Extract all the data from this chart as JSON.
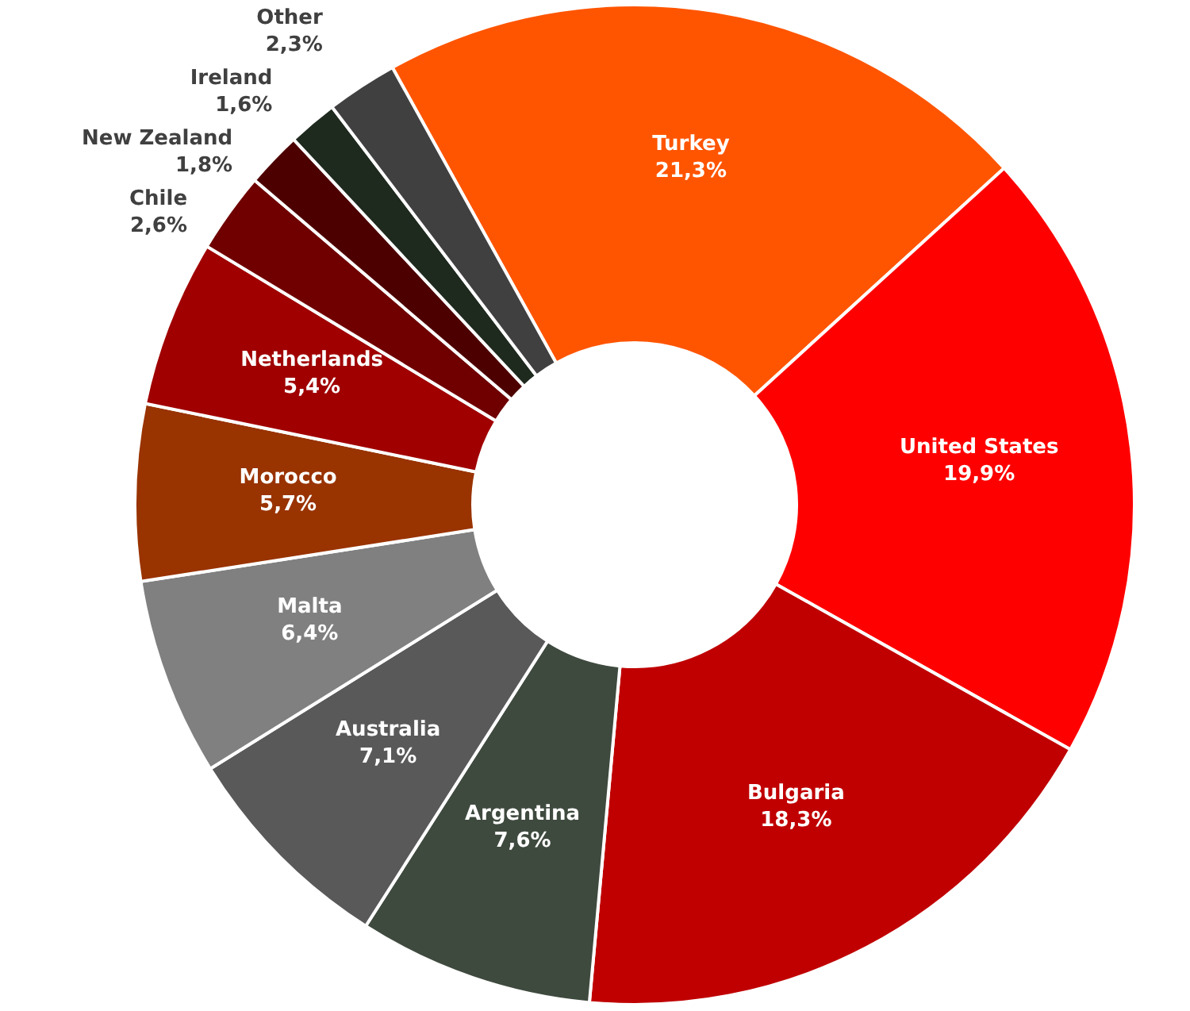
{
  "chart_data": {
    "type": "donut",
    "categories": [
      "Turkey",
      "United States",
      "Bulgaria",
      "Argentina",
      "Australia",
      "Malta",
      "Morocco",
      "Netherlands",
      "Chile",
      "New Zealand",
      "Ireland",
      "Other"
    ],
    "values": [
      21.3,
      19.9,
      18.3,
      7.6,
      7.1,
      6.4,
      5.7,
      5.4,
      2.6,
      1.8,
      1.6,
      2.3
    ],
    "value_labels": [
      "21,3%",
      "19,9%",
      "18,3%",
      "7,6%",
      "7,1%",
      "6,4%",
      "5,7%",
      "5,4%",
      "2,6%",
      "1,8%",
      "1,6%",
      "2,3%"
    ],
    "colors": [
      "#ff5500",
      "#ff0000",
      "#c00000",
      "#3f4a3f",
      "#595959",
      "#808080",
      "#993300",
      "#a00000",
      "#700000",
      "#4d0000",
      "#1f2a1f",
      "#404040"
    ],
    "legend": false
  }
}
